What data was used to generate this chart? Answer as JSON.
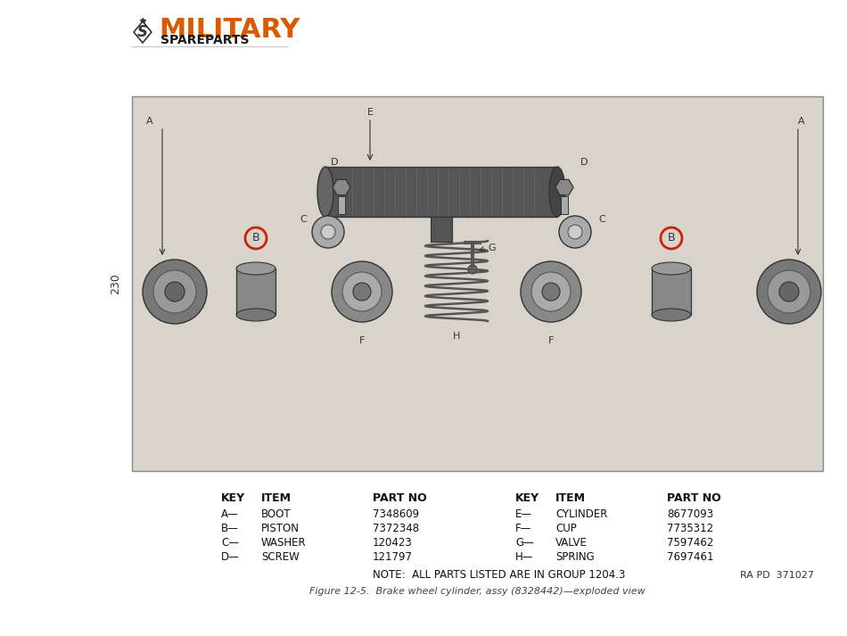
{
  "bg_color": "#f5f5f0",
  "page_bg": "#ffffff",
  "diagram_bg": "#d8d4cc",
  "logo_text_military": "MILITARY",
  "logo_text_spare": "SPAREPARTS",
  "logo_color": "#d95a00",
  "logo_text_color": "#1a1a1a",
  "page_number": "230",
  "ra_pd": "RA PD  371027",
  "caption": "Figure 12-5.  Brake wheel cylinder, assy (8328442)—exploded view",
  "table_rows_left": [
    [
      "A",
      "BOOT",
      "7348609"
    ],
    [
      "B",
      "PISTON",
      "7372348"
    ],
    [
      "C",
      "WASHER",
      "120423"
    ],
    [
      "D",
      "SCREW",
      "121797"
    ]
  ],
  "table_rows_right": [
    [
      "E",
      "CYLINDER",
      "8677093"
    ],
    [
      "F",
      "CUP",
      "7735312"
    ],
    [
      "G",
      "VALVE",
      "7597462"
    ],
    [
      "H",
      "SPRING",
      "7697461"
    ]
  ],
  "table_note": "NOTE:  ALL PARTS LISTED ARE IN GROUP 1204.3",
  "font_size_table_header": 9,
  "font_size_table_body": 8.5,
  "font_size_caption": 8,
  "font_size_logo_big": 22,
  "font_size_logo_small": 10,
  "font_size_page_num": 9
}
